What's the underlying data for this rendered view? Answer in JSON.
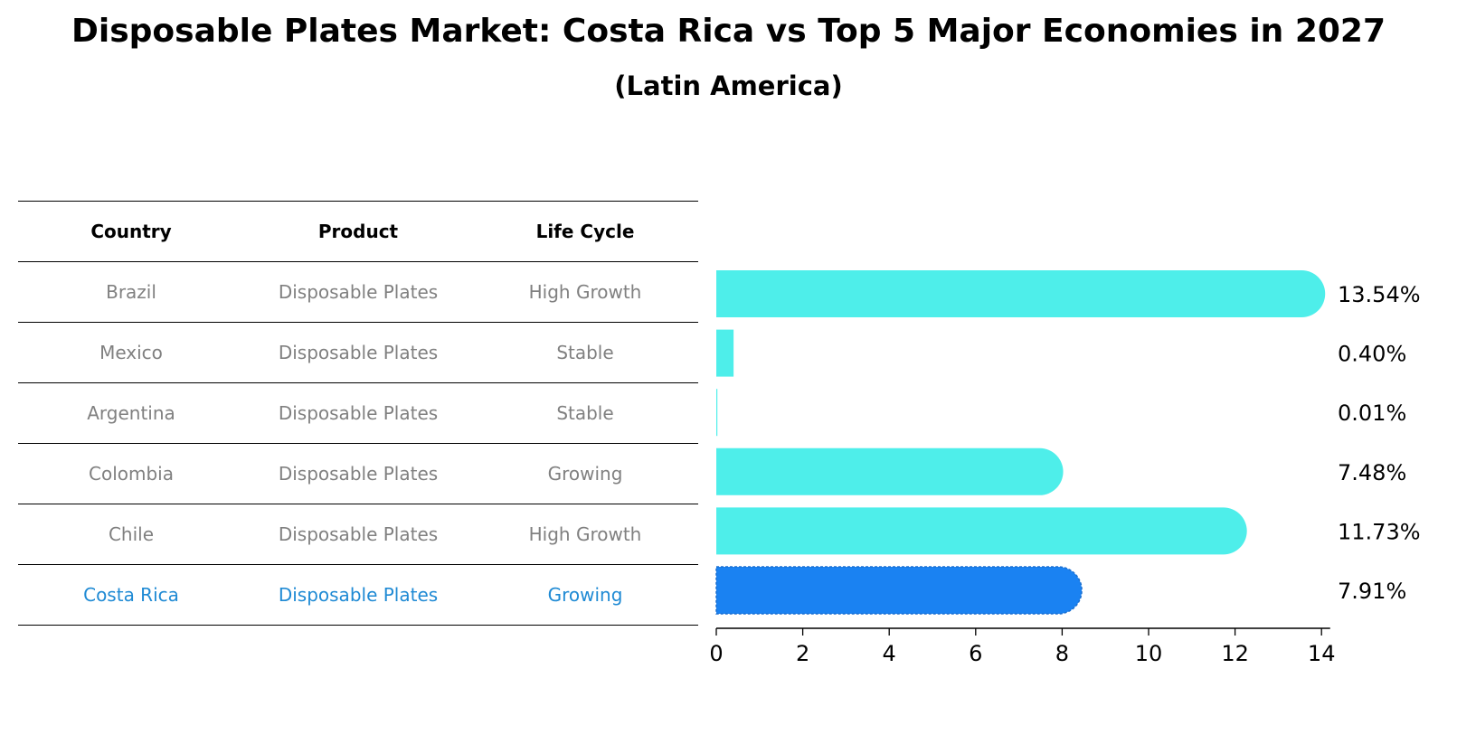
{
  "title": "Disposable Plates Market: Costa Rica vs Top 5 Major Economies in 2027",
  "subtitle": "(Latin America)",
  "table": {
    "headers": [
      "Country",
      "Product",
      "Life Cycle"
    ],
    "rows": [
      {
        "country": "Brazil",
        "product": "Disposable Plates",
        "life_cycle": "High Growth"
      },
      {
        "country": "Mexico",
        "product": "Disposable Plates",
        "life_cycle": "Stable"
      },
      {
        "country": "Argentina",
        "product": "Disposable Plates",
        "life_cycle": "Stable"
      },
      {
        "country": "Colombia",
        "product": "Disposable Plates",
        "life_cycle": "Growing"
      },
      {
        "country": "Chile",
        "product": "Disposable Plates",
        "life_cycle": "High Growth"
      },
      {
        "country": "Costa Rica",
        "product": "Disposable Plates",
        "life_cycle": "Growing"
      }
    ]
  },
  "colors": {
    "bar": "#4eeeea",
    "highlight_bar": "#1a82f2",
    "highlight_text": "#1f8ad4",
    "row_text": "#808080"
  },
  "chart_data": {
    "type": "bar",
    "orientation": "horizontal",
    "categories": [
      "Brazil",
      "Mexico",
      "Argentina",
      "Colombia",
      "Chile",
      "Costa Rica"
    ],
    "values": [
      13.54,
      0.4,
      0.01,
      7.48,
      11.73,
      7.91
    ],
    "value_labels": [
      "13.54%",
      "0.40%",
      "0.01%",
      "7.48%",
      "11.73%",
      "7.91%"
    ],
    "highlight": "Costa Rica",
    "xlim": [
      0,
      14.2
    ],
    "xticks": [
      0,
      2,
      4,
      6,
      8,
      10,
      12,
      14
    ],
    "xlabel": "",
    "ylabel": "",
    "grid": false
  }
}
